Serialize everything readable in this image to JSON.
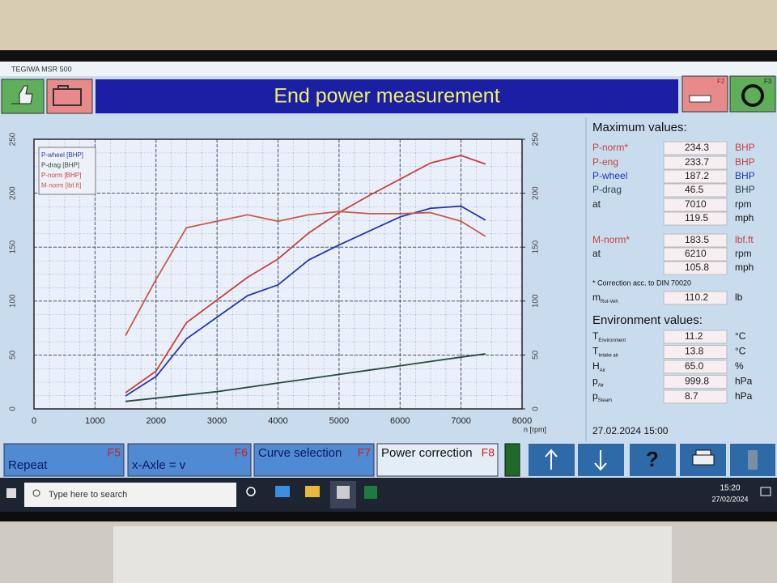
{
  "window_title": "TEGIWA MSR 500",
  "header": {
    "title": "End power measurement",
    "f2": "F2",
    "f3": "F3"
  },
  "chart_data": {
    "type": "line",
    "x_label": "n [rpm]",
    "x": [
      1500,
      2000,
      2500,
      3000,
      3500,
      4000,
      4500,
      5000,
      5500,
      6000,
      6500,
      7000,
      7400
    ],
    "series": [
      {
        "name": "P-wheel [BHP]",
        "color": "#2436b0",
        "values": [
          12,
          30,
          65,
          85,
          105,
          115,
          138,
          152,
          165,
          178,
          186,
          188,
          175
        ]
      },
      {
        "name": "P-drag [BHP]",
        "color": "#274a3e",
        "values": [
          7,
          10,
          13,
          16,
          20,
          24,
          28,
          32,
          36,
          40,
          44,
          48,
          51
        ]
      },
      {
        "name": "P-norm [BHP]",
        "color": "#c8403c",
        "values": [
          15,
          35,
          80,
          101,
          122,
          139,
          163,
          182,
          198,
          213,
          228,
          235,
          227
        ]
      },
      {
        "name": "M-norm [lbf.ft]",
        "color": "#c85a48",
        "axis": "y2",
        "values": [
          68,
          120,
          168,
          174,
          180,
          174,
          180,
          183,
          181,
          181,
          182,
          174,
          160
        ]
      }
    ],
    "xlim": [
      0,
      8000
    ],
    "xticks": [
      0,
      1000,
      2000,
      3000,
      4000,
      5000,
      6000,
      7000,
      8000
    ],
    "ylim": [
      0,
      250
    ],
    "yticks": [
      0,
      50,
      100,
      150,
      200,
      250
    ],
    "y2lim": [
      0,
      250
    ],
    "y2ticks": [
      0,
      50,
      100,
      150,
      200,
      250
    ],
    "grid": true,
    "legend": "top-left"
  },
  "maximum_values": {
    "title": "Maximum values:",
    "rows": [
      {
        "label": "P-norm*",
        "color": "#c8403c",
        "value": "234.3",
        "unit": "BHP"
      },
      {
        "label": "P-eng",
        "color": "#c8403c",
        "value": "233.7",
        "unit": "BHP"
      },
      {
        "label": "P-wheel",
        "color": "#2436b0",
        "value": "187.2",
        "unit": "BHP"
      },
      {
        "label": "P-drag",
        "color": "#274a3e",
        "value": "46.5",
        "unit": "BHP"
      },
      {
        "label": "at",
        "color": "#222222",
        "value": "7010",
        "unit": "rpm"
      },
      {
        "value": "119.5",
        "unit": "mph"
      },
      {
        "label": "M-norm*",
        "color": "#c8403c",
        "value": "183.5",
        "unit": "lbf.ft"
      },
      {
        "label": "at",
        "color": "#222222",
        "value": "6210",
        "unit": "rpm"
      },
      {
        "value": "105.8",
        "unit": "mph"
      }
    ],
    "note": "* Correction acc. to DIN 70020",
    "mass": {
      "label": "m",
      "sub": "Rot-Veh",
      "value": "110.2",
      "unit": "lb"
    }
  },
  "environment_values": {
    "title": "Environment values:",
    "rows": [
      {
        "label": "T",
        "sub": "Environment",
        "value": "11.2",
        "unit": "°C"
      },
      {
        "label": "T",
        "sub": "Intake air",
        "value": "13.8",
        "unit": "°C"
      },
      {
        "label": "H",
        "sub": "Air",
        "value": "65.0",
        "unit": "%"
      },
      {
        "label": "p",
        "sub": "Air",
        "value": "999.8",
        "unit": "hPa"
      },
      {
        "label": "p",
        "sub": "Steam",
        "value": "8.7",
        "unit": "hPa"
      }
    ]
  },
  "datetime": "27.02.2024 15:00",
  "buttons": [
    {
      "label": "Repeat",
      "key": "F5"
    },
    {
      "label": "x-Axle = v",
      "key": "F6"
    },
    {
      "label": "Curve selection",
      "key": "F7"
    },
    {
      "label": "Power correction",
      "key": "F8"
    }
  ],
  "help": "?",
  "taskbar": {
    "search": "Type here to search",
    "time": "15:20",
    "date": "27/02/2024"
  }
}
